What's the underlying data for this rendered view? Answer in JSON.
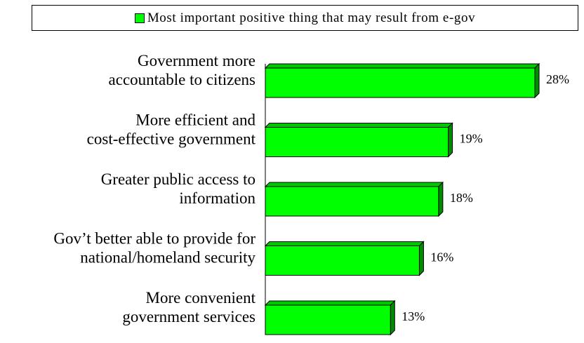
{
  "chart_data": {
    "type": "bar",
    "orientation": "horizontal",
    "style": "3d",
    "categories": [
      [
        "Government more",
        "accountable to citizens"
      ],
      [
        "More efficient and",
        "cost-effective government"
      ],
      [
        "Greater public access to",
        "information"
      ],
      [
        "Gov’t better able to provide for",
        "national/homeland security"
      ],
      [
        "More convenient",
        "government services"
      ]
    ],
    "series": [
      {
        "name": "Most important positive thing that may result from e-gov",
        "values": [
          28,
          19,
          18,
          16,
          13
        ],
        "value_labels": [
          "28%",
          "19%",
          "18%",
          "16%",
          "13%"
        ],
        "color": "#00ff00"
      }
    ],
    "xlim": [
      0,
      28
    ],
    "grid": false,
    "legend_position": "top"
  }
}
